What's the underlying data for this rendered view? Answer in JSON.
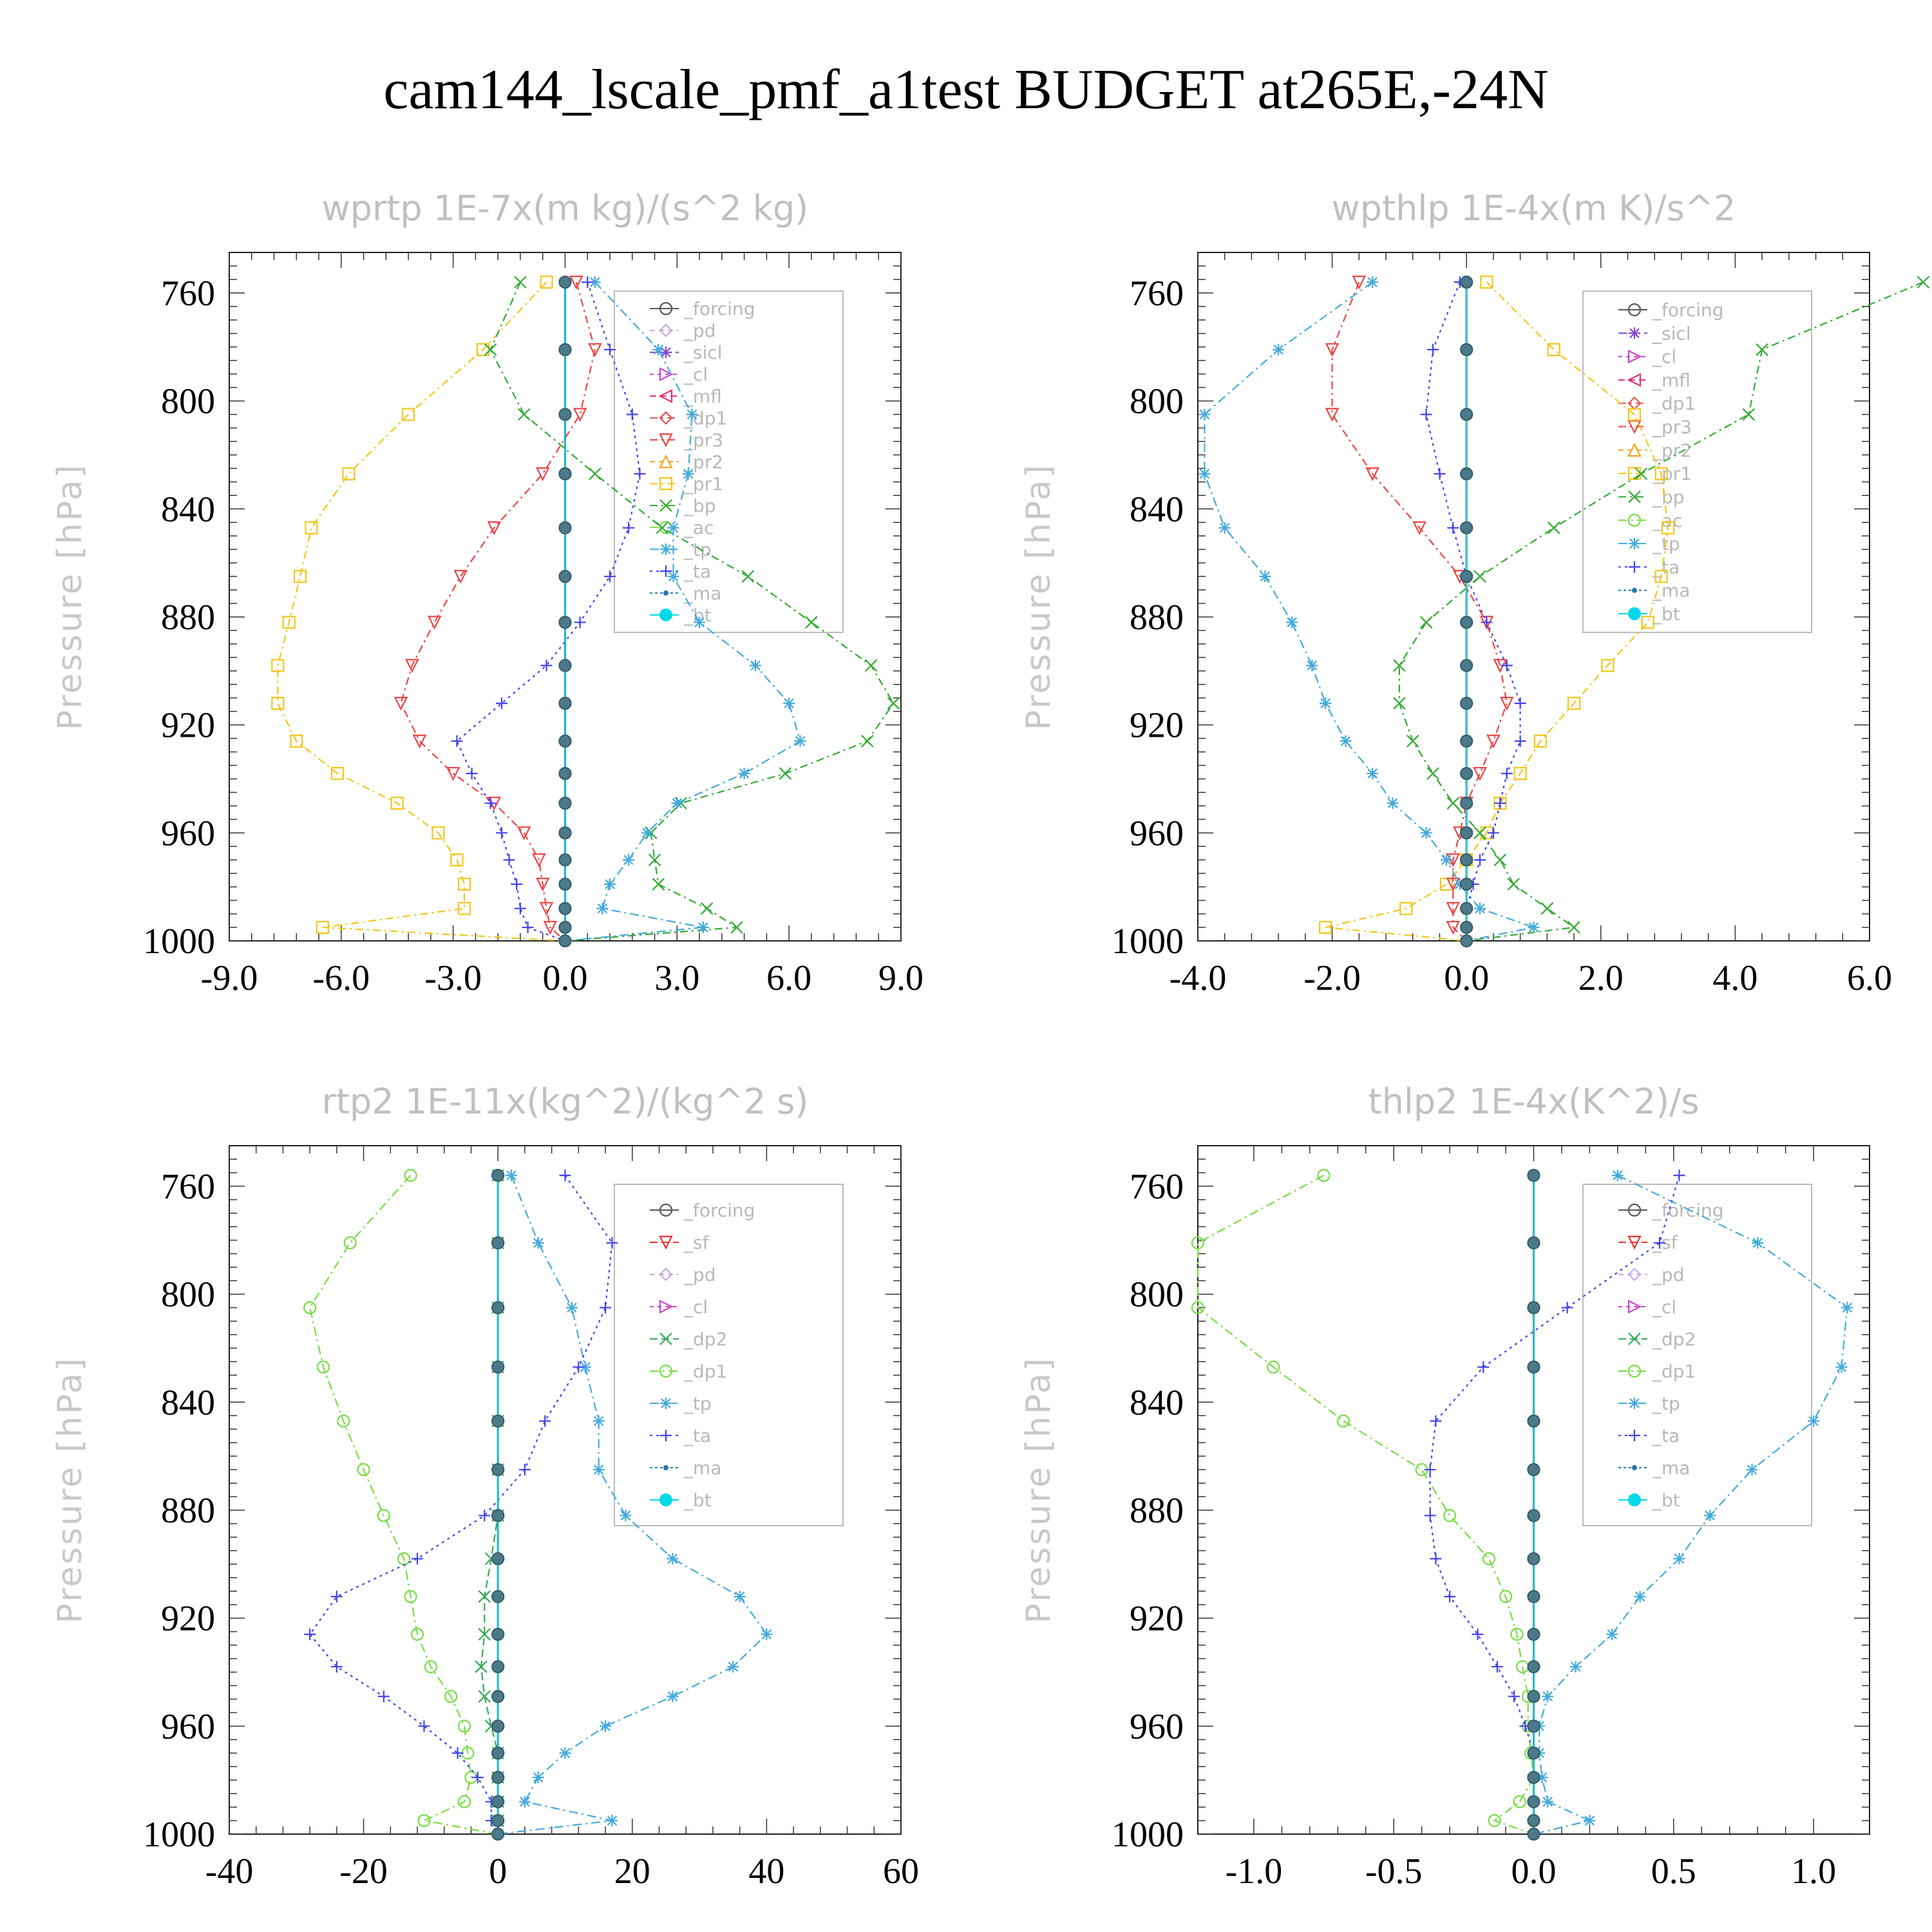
{
  "title": "cam144_lscale_pmf_a1test  BUDGET at265E,-24N",
  "colors": {
    "forcing": "#555555",
    "pd": "#c8a8e8",
    "sicl": "#8844cc",
    "cl": "#cc44cc",
    "mfl": "#dd3377",
    "dp1": "#e05555",
    "pr3": "#ee4444",
    "pr2": "#f5a623",
    "pr1": "#f5c518",
    "bp": "#33aa33",
    "ac": "#77dd44",
    "tp": "#44aadd",
    "ta": "#4444ee",
    "ma": "#2277aa",
    "bt": "#00d8e8",
    "sf": "#ee3333",
    "dp2": "#33aa55"
  },
  "chart_data": [
    {
      "type": "line",
      "title": "wprtp  1E-7x(m kg)/(s^2 kg)",
      "ylabel": "Pressure [hPa]",
      "xlim": [
        -9,
        9
      ],
      "ylim": [
        1000,
        745
      ],
      "xticks": [
        "-9.0",
        "-6.0",
        "-3.0",
        "0.0",
        "3.0",
        "6.0",
        "9.0"
      ],
      "yticks": [
        "760",
        "800",
        "840",
        "880",
        "920",
        "960",
        "1000"
      ],
      "legend": [
        "_forcing",
        "_pd",
        "_sicl",
        "_cl",
        "_mfl",
        "_dp1",
        "_pr3",
        "_pr2",
        "_pr1",
        "_bp",
        "_ac",
        "_tp",
        "_ta",
        "_ma",
        "_bt"
      ],
      "pressure": [
        756,
        781,
        805,
        827,
        847,
        865,
        882,
        898,
        912,
        926,
        938,
        949,
        960,
        970,
        979,
        988,
        995,
        1000
      ],
      "series": [
        {
          "name": "_pr1",
          "key": "pr1",
          "values": [
            -0.5,
            -2.2,
            -4.2,
            -5.8,
            -6.8,
            -7.1,
            -7.4,
            -7.7,
            -7.7,
            -7.2,
            -6.1,
            -4.5,
            -3.4,
            -2.9,
            -2.7,
            -2.7,
            -6.5,
            0
          ]
        },
        {
          "name": "_pr3",
          "key": "pr3",
          "values": [
            0.3,
            0.8,
            0.4,
            -0.6,
            -1.9,
            -2.8,
            -3.5,
            -4.1,
            -4.4,
            -3.9,
            -3.0,
            -1.9,
            -1.1,
            -0.7,
            -0.6,
            -0.5,
            -0.4,
            0
          ]
        },
        {
          "name": "_bp",
          "key": "bp",
          "values": [
            -1.2,
            -2.0,
            -1.1,
            0.8,
            2.6,
            4.9,
            6.6,
            8.2,
            8.8,
            8.1,
            5.9,
            3.1,
            2.3,
            2.4,
            2.5,
            3.8,
            4.6,
            0
          ]
        },
        {
          "name": "_tp",
          "key": "tp",
          "values": [
            0.8,
            2.5,
            3.4,
            3.3,
            2.9,
            2.9,
            3.6,
            5.1,
            6.0,
            6.3,
            4.8,
            3.0,
            2.2,
            1.7,
            1.2,
            1.0,
            3.7,
            0
          ]
        },
        {
          "name": "_ta",
          "key": "ta",
          "values": [
            0.6,
            1.2,
            1.8,
            2.0,
            1.7,
            1.2,
            0.4,
            -0.5,
            -1.7,
            -2.9,
            -2.5,
            -2.0,
            -1.7,
            -1.5,
            -1.3,
            -1.2,
            -1.0,
            0
          ]
        },
        {
          "name": "_forcing",
          "key": "forcing",
          "values": [
            0,
            0,
            0,
            0,
            0,
            0,
            0,
            0,
            0,
            0,
            0,
            0,
            0,
            0,
            0,
            0,
            0,
            0
          ]
        },
        {
          "name": "_bt",
          "key": "bt",
          "values": [
            0,
            0,
            0,
            0,
            0,
            0,
            0,
            0,
            0,
            0,
            0,
            0,
            0,
            0,
            0,
            0,
            0,
            0
          ]
        }
      ]
    },
    {
      "type": "line",
      "title": "wpthlp  1E-4x(m K)/s^2",
      "ylabel": "Pressure [hPa]",
      "xlim": [
        -4,
        6
      ],
      "ylim": [
        1000,
        745
      ],
      "xticks": [
        "-4.0",
        "-2.0",
        "0.0",
        "2.0",
        "4.0",
        "6.0"
      ],
      "yticks": [
        "760",
        "800",
        "840",
        "880",
        "920",
        "960",
        "1000"
      ],
      "legend": [
        "_forcing",
        "_sicl",
        "_cl",
        "_mfl",
        "_dp1",
        "_pr3",
        "_pr2",
        "_pr1",
        "_bp",
        "_ac",
        "_tp",
        "_ta",
        "_ma",
        "_bt"
      ],
      "pressure": [
        756,
        781,
        805,
        827,
        847,
        865,
        882,
        898,
        912,
        926,
        938,
        949,
        960,
        970,
        979,
        988,
        995,
        1000
      ],
      "series": [
        {
          "name": "_pr1",
          "key": "pr1",
          "values": [
            0.3,
            1.3,
            2.5,
            2.9,
            3.0,
            2.9,
            2.7,
            2.1,
            1.6,
            1.1,
            0.8,
            0.5,
            0.3,
            0.0,
            -0.3,
            -0.9,
            -2.1,
            0
          ]
        },
        {
          "name": "_pr3",
          "key": "pr3",
          "values": [
            -1.6,
            -2.0,
            -2.0,
            -1.4,
            -0.7,
            -0.1,
            0.3,
            0.5,
            0.6,
            0.4,
            0.2,
            0.0,
            -0.1,
            -0.2,
            -0.2,
            -0.2,
            -0.2,
            0
          ]
        },
        {
          "name": "_bp",
          "key": "bp",
          "values": [
            6.8,
            4.4,
            4.2,
            2.6,
            1.3,
            0.2,
            -0.6,
            -1.0,
            -1.0,
            -0.8,
            -0.5,
            -0.2,
            0.2,
            0.5,
            0.7,
            1.2,
            1.6,
            0
          ]
        },
        {
          "name": "_tp",
          "key": "tp",
          "values": [
            -1.4,
            -2.8,
            -3.9,
            -3.9,
            -3.6,
            -3.0,
            -2.6,
            -2.3,
            -2.1,
            -1.8,
            -1.4,
            -1.1,
            -0.6,
            -0.3,
            -0.1,
            0.2,
            1.0,
            0
          ]
        },
        {
          "name": "_ta",
          "key": "ta",
          "values": [
            -0.1,
            -0.5,
            -0.6,
            -0.4,
            -0.2,
            0.0,
            0.3,
            0.6,
            0.8,
            0.8,
            0.6,
            0.5,
            0.4,
            0.2,
            0.1,
            0.0,
            0.0,
            0
          ]
        },
        {
          "name": "_forcing",
          "key": "forcing",
          "values": [
            0,
            0,
            0,
            0,
            0,
            0,
            0,
            0,
            0,
            0,
            0,
            0,
            0,
            0,
            0,
            0,
            0,
            0
          ]
        },
        {
          "name": "_bt",
          "key": "bt",
          "values": [
            0,
            0,
            0,
            0,
            0,
            0,
            0,
            0,
            0,
            0,
            0,
            0,
            0,
            0,
            0,
            0,
            0,
            0
          ]
        }
      ]
    },
    {
      "type": "line",
      "title": "rtp2  1E-11x(kg^2)/(kg^2 s)",
      "ylabel": "Pressure [hPa]",
      "xlim": [
        -40,
        60
      ],
      "ylim": [
        1000,
        745
      ],
      "xticks": [
        "-40",
        "-20",
        "0",
        "20",
        "40",
        "60"
      ],
      "yticks": [
        "760",
        "800",
        "840",
        "880",
        "920",
        "960",
        "1000"
      ],
      "legend": [
        "_forcing",
        "_sf",
        "_pd",
        "_cl",
        "_dp2",
        "_dp1",
        "_tp",
        "_ta",
        "_ma",
        "_bt"
      ],
      "pressure": [
        756,
        781,
        805,
        827,
        847,
        865,
        882,
        898,
        912,
        926,
        938,
        949,
        960,
        970,
        979,
        988,
        995,
        1000
      ],
      "series": [
        {
          "name": "_dp1",
          "key": "ac",
          "values": [
            -13,
            -22,
            -28,
            -26,
            -23,
            -20,
            -17,
            -14,
            -13,
            -12,
            -10,
            -7,
            -5,
            -4.5,
            -4,
            -5,
            -11,
            0
          ]
        },
        {
          "name": "_tp",
          "key": "tp",
          "values": [
            2,
            6,
            11,
            13,
            15,
            15,
            19,
            26,
            36,
            40,
            35,
            26,
            16,
            10,
            6,
            4,
            17,
            0
          ]
        },
        {
          "name": "_ta",
          "key": "ta",
          "values": [
            10,
            17,
            16,
            12,
            7,
            4,
            -2,
            -12,
            -24,
            -28,
            -24,
            -17,
            -11,
            -6,
            -3,
            -1,
            -1,
            0
          ]
        },
        {
          "name": "_dp2",
          "key": "dp2",
          "values": [
            0,
            0,
            0,
            0,
            0,
            0,
            0,
            -1,
            -2,
            -2,
            -2.5,
            -2,
            -1,
            0,
            0,
            0,
            0,
            0
          ]
        },
        {
          "name": "_forcing",
          "key": "forcing",
          "values": [
            0,
            0,
            0,
            0,
            0,
            0,
            0,
            0,
            0,
            0,
            0,
            0,
            0,
            0,
            0,
            0,
            0,
            0
          ]
        },
        {
          "name": "_bt",
          "key": "bt",
          "values": [
            0,
            0,
            0,
            0,
            0,
            0,
            0,
            0,
            0,
            0,
            0,
            0,
            0,
            0,
            0,
            0,
            0,
            0
          ]
        }
      ]
    },
    {
      "type": "line",
      "title": "thlp2  1E-4x(K^2)/s",
      "ylabel": "Pressure [hPa]",
      "xlim": [
        -1.2,
        1.2
      ],
      "ylim": [
        1000,
        745
      ],
      "xticks": [
        "-1.0",
        "-0.5",
        "0.0",
        "0.5",
        "1.0"
      ],
      "yticks": [
        "760",
        "800",
        "840",
        "880",
        "920",
        "960",
        "1000"
      ],
      "legend": [
        "_forcing",
        "_sf",
        "_pd",
        "_cl",
        "_dp2",
        "_dp1",
        "_tp",
        "_ta",
        "_ma",
        "_bt"
      ],
      "pressure": [
        756,
        781,
        805,
        827,
        847,
        865,
        882,
        898,
        912,
        926,
        938,
        949,
        960,
        970,
        979,
        988,
        995,
        1000
      ],
      "series": [
        {
          "name": "_dp1",
          "key": "ac",
          "values": [
            -0.75,
            -1.2,
            -1.2,
            -0.93,
            -0.68,
            -0.4,
            -0.3,
            -0.16,
            -0.1,
            -0.06,
            -0.04,
            -0.02,
            -0.02,
            -0.01,
            0,
            -0.05,
            -0.14,
            0
          ]
        },
        {
          "name": "_tp",
          "key": "tp",
          "values": [
            0.3,
            0.8,
            1.12,
            1.1,
            1.0,
            0.78,
            0.63,
            0.52,
            0.38,
            0.28,
            0.15,
            0.05,
            0.02,
            0.02,
            0.03,
            0.05,
            0.2,
            0
          ]
        },
        {
          "name": "_ta",
          "key": "ta",
          "values": [
            0.52,
            0.45,
            0.12,
            -0.18,
            -0.35,
            -0.37,
            -0.37,
            -0.35,
            -0.3,
            -0.2,
            -0.13,
            -0.07,
            -0.03,
            0,
            0,
            0,
            0,
            0
          ]
        },
        {
          "name": "_forcing",
          "key": "forcing",
          "values": [
            0,
            0,
            0,
            0,
            0,
            0,
            0,
            0,
            0,
            0,
            0,
            0,
            0,
            0,
            0,
            0,
            0,
            0
          ]
        },
        {
          "name": "_bt",
          "key": "bt",
          "values": [
            0,
            0,
            0,
            0,
            0,
            0,
            0,
            0,
            0,
            0,
            0,
            0,
            0,
            0,
            0,
            0,
            0,
            0
          ]
        }
      ]
    }
  ]
}
